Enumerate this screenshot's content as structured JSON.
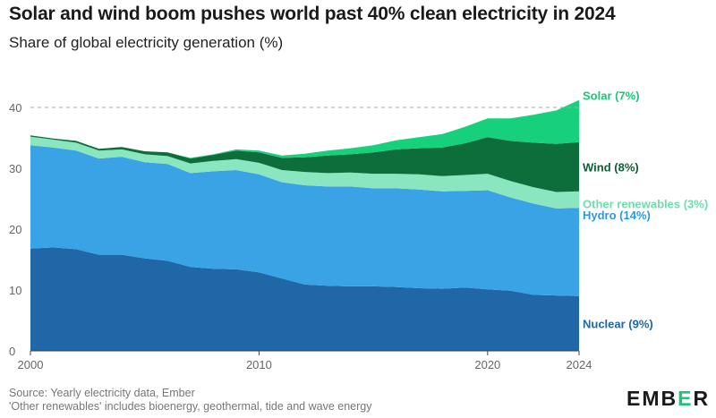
{
  "title": "Solar and wind boom pushes world past 40% clean electricity in 2024",
  "subtitle": "Share of global electricity generation (%)",
  "source_line1": "Source: Yearly electricity data, Ember",
  "source_line2": "'Other renewables' includes bioenergy, geothermal, tide and wave energy",
  "logo": {
    "part1": "EMB",
    "part2": "E",
    "part3": "R"
  },
  "colors": {
    "nuclear": "#1f67a6",
    "hydro": "#39a3e6",
    "other_renewables": "#8ae6be",
    "wind": "#0d6e3b",
    "solar": "#17d07c",
    "reference_line": "#aaaaaa"
  },
  "chart_data": {
    "type": "area",
    "stacked": true,
    "title": "Solar and wind boom pushes world past 40% clean electricity in 2024",
    "subtitle": "Share of global electricity generation (%)",
    "xlabel": "",
    "ylabel": "",
    "x": [
      2000,
      2001,
      2002,
      2003,
      2004,
      2005,
      2006,
      2007,
      2008,
      2009,
      2010,
      2011,
      2012,
      2013,
      2014,
      2015,
      2016,
      2017,
      2018,
      2019,
      2020,
      2021,
      2022,
      2023,
      2024
    ],
    "xlim": [
      2000,
      2024
    ],
    "ylim": [
      0,
      45
    ],
    "x_ticks": [
      2000,
      2010,
      2020,
      2024
    ],
    "y_ticks": [
      0,
      10,
      20,
      30,
      40
    ],
    "reference_line": 40,
    "grid": false,
    "series": [
      {
        "name": "Nuclear",
        "label": "Nuclear (9%)",
        "color_key": "nuclear",
        "values": [
          16.8,
          17.0,
          16.7,
          15.8,
          15.8,
          15.2,
          14.8,
          13.8,
          13.5,
          13.4,
          12.9,
          11.9,
          10.9,
          10.7,
          10.6,
          10.6,
          10.5,
          10.3,
          10.2,
          10.4,
          10.1,
          9.9,
          9.2,
          9.1,
          9.0
        ]
      },
      {
        "name": "Hydro",
        "label": "Hydro (14%)",
        "color_key": "hydro",
        "values": [
          17.0,
          16.4,
          16.2,
          15.8,
          16.1,
          15.8,
          15.9,
          15.4,
          16.0,
          16.3,
          16.1,
          15.8,
          16.3,
          16.3,
          16.4,
          16.1,
          16.2,
          16.2,
          16.0,
          15.9,
          16.3,
          15.3,
          15.0,
          14.3,
          14.5
        ]
      },
      {
        "name": "Other renewables",
        "label": "Other renewables (3%)",
        "color_key": "other_renewables",
        "values": [
          1.4,
          1.3,
          1.3,
          1.3,
          1.2,
          1.3,
          1.3,
          1.6,
          1.7,
          1.8,
          1.9,
          2.0,
          2.2,
          2.2,
          2.3,
          2.4,
          2.4,
          2.5,
          2.5,
          2.6,
          2.7,
          2.7,
          2.7,
          2.7,
          2.7
        ]
      },
      {
        "name": "Wind",
        "label": "Wind (8%)",
        "color_key": "wind",
        "values": [
          0.2,
          0.2,
          0.3,
          0.3,
          0.4,
          0.5,
          0.6,
          0.8,
          1.0,
          1.4,
          1.7,
          2.0,
          2.4,
          2.9,
          3.0,
          3.5,
          4.0,
          4.3,
          4.7,
          5.2,
          6.0,
          6.6,
          7.3,
          7.9,
          8.1
        ]
      },
      {
        "name": "Solar",
        "label": "Solar (7%)",
        "color_key": "solar",
        "values": [
          0.0,
          0.0,
          0.0,
          0.0,
          0.0,
          0.0,
          0.0,
          0.1,
          0.1,
          0.2,
          0.3,
          0.4,
          0.6,
          0.8,
          1.0,
          1.2,
          1.5,
          1.8,
          2.2,
          2.7,
          3.1,
          3.7,
          4.6,
          5.5,
          6.9
        ]
      }
    ]
  }
}
